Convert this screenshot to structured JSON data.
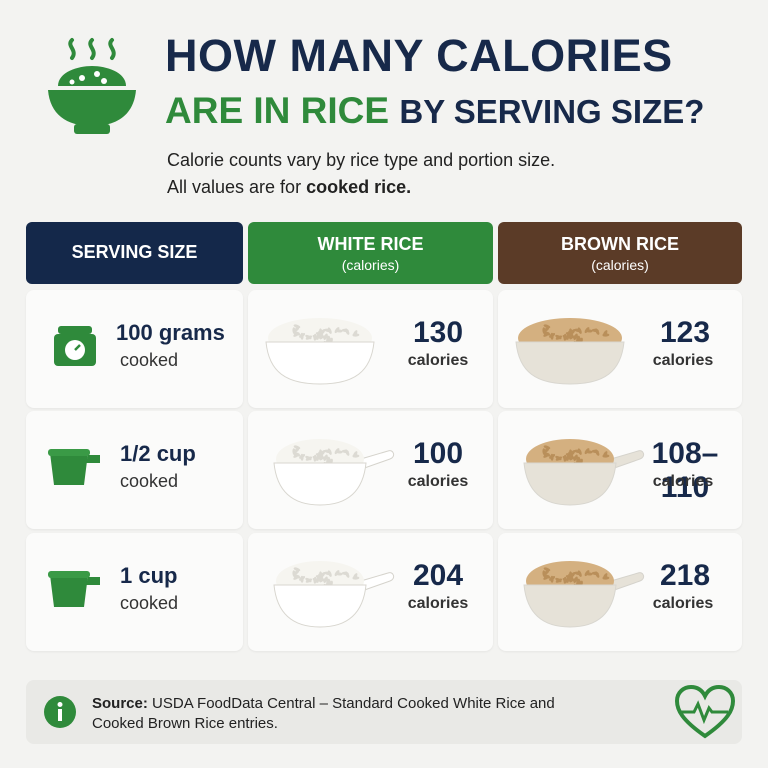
{
  "header": {
    "title_line1": "HOW MANY CALORIES",
    "title_line2_highlight": "ARE IN RICE",
    "title_line2_rest": "BY SERVING SIZE?",
    "subtitle_line1": "Calorie counts vary by rice type and portion size.",
    "subtitle_line2_plain": "All values are for",
    "subtitle_line2_bold": "cooked rice."
  },
  "table": {
    "headers": [
      {
        "title": "SERVING SIZE"
      },
      {
        "title": "WHITE RICE",
        "note": "(calories)"
      },
      {
        "title": "BROWN RICE",
        "note": "(calories)"
      }
    ],
    "rows": [
      {
        "serving": "100 grams",
        "state": "cooked",
        "white": "130",
        "white_unit": "calories",
        "brown": "123",
        "brown_unit": "calories"
      },
      {
        "serving": "1/2 cup",
        "state": "cooked",
        "white": "100",
        "white_unit": "calories",
        "brown": "108–110",
        "brown_unit": "calories"
      },
      {
        "serving": "1 cup",
        "state": "cooked",
        "white": "204",
        "white_unit": "calories",
        "brown": "218",
        "brown_unit": "calories"
      }
    ]
  },
  "footer": {
    "source_label": "Source:",
    "source_text": "USDA FoodData Central – Standard Cooked White Rice and Cooked Brown Rice entries."
  }
}
